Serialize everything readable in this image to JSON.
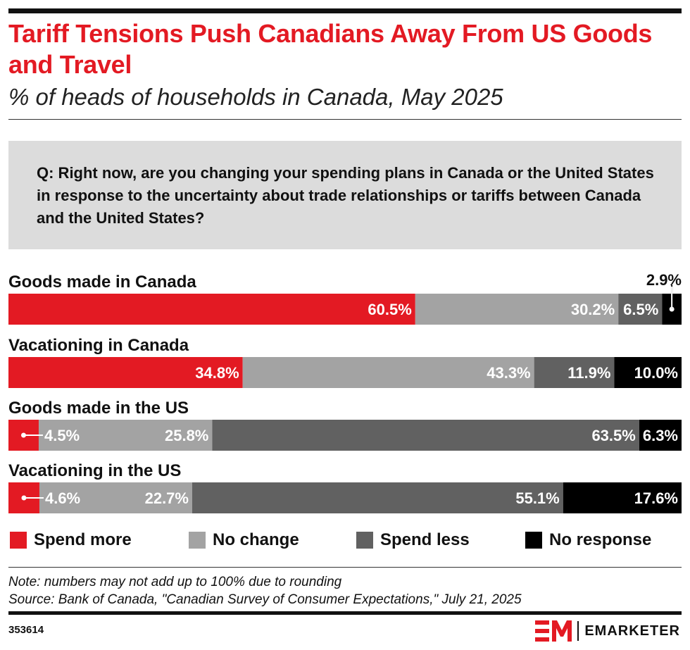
{
  "header": {
    "title": "Tariff Tensions Push Canadians Away From US Goods and Travel",
    "subtitle": "% of heads of households in Canada, May 2025"
  },
  "question": "Q: Right now, are you changing your spending plans in Canada or the United States in response to the uncertainty about trade relationships or tariffs between Canada and the United States?",
  "chart_data": {
    "type": "bar",
    "orientation": "horizontal",
    "stacked": true,
    "categories": [
      "Goods made in Canada",
      "Vacationing in Canada",
      "Goods made in the US",
      "Vacationing in the US"
    ],
    "series": [
      {
        "name": "Spend more",
        "values": [
          60.5,
          34.8,
          4.5,
          4.6
        ],
        "color": "#e31a23"
      },
      {
        "name": "No change",
        "values": [
          30.2,
          43.3,
          25.8,
          22.7
        ],
        "color": "#a3a3a3"
      },
      {
        "name": "Spend less",
        "values": [
          6.5,
          11.9,
          63.5,
          55.1
        ],
        "color": "#616161"
      },
      {
        "name": "No response",
        "values": [
          2.9,
          10.0,
          6.3,
          17.6
        ],
        "color": "#000000"
      }
    ],
    "value_suffix": "%",
    "legend_position": "bottom",
    "grid": false
  },
  "footer": {
    "note": "Note: numbers may not add up to 100% due to rounding",
    "source": "Source: Bank of Canada, \"Canadian Survey of Consumer Expectations,\" July 21, 2025",
    "chart_id": "353614",
    "brand": "EMARKETER"
  },
  "colors": {
    "accent": "#e31a23",
    "question_bg": "#dcdcdc"
  }
}
